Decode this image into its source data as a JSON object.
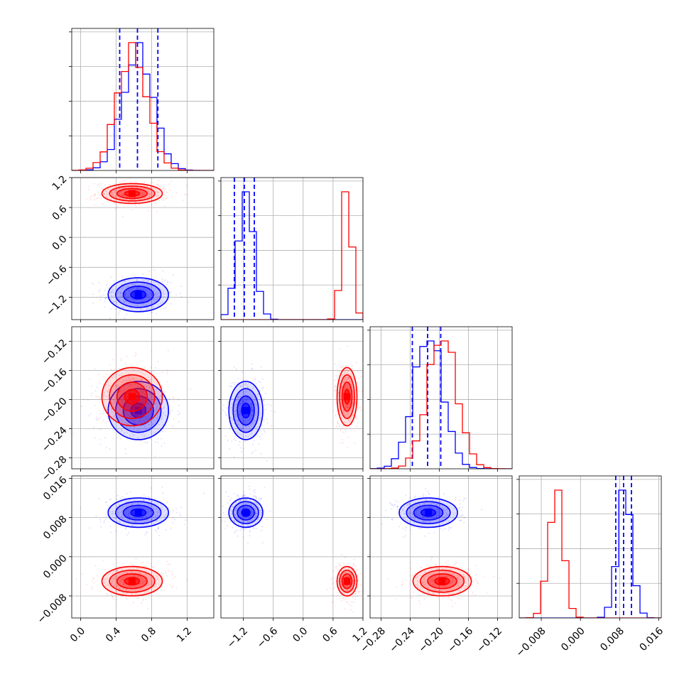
{
  "colors": {
    "blue": "#0000ff",
    "red": "#ff0000",
    "grid": "#b0b0b0"
  },
  "chart_data": {
    "type": "corner",
    "series": [
      {
        "name": "",
        "color": "blue",
        "means": [
          0.65,
          -1.15,
          -0.215,
          0.009
        ],
        "sds": [
          0.17,
          0.17,
          0.02,
          0.0015
        ],
        "quantiles": [
          [
            0.44,
            0.64,
            0.87
          ],
          [
            -1.38,
            -1.18,
            -0.98
          ],
          [
            -0.237,
            -0.216,
            -0.198
          ],
          [
            0.0072,
            0.0088,
            0.0104
          ]
        ]
      },
      {
        "name": "",
        "color": "red",
        "means": [
          0.58,
          0.88,
          -0.196,
          -0.005
        ],
        "sds": [
          0.17,
          0.1,
          0.02,
          0.0015
        ],
        "quantiles": null
      }
    ],
    "axes": [
      {
        "range": [
          -0.1,
          1.5
        ],
        "ticks": [
          0.0,
          0.4,
          0.8,
          1.2
        ],
        "tick_labels": [
          "0.0",
          "0.4",
          "0.8",
          "1.2"
        ]
      },
      {
        "range": [
          -1.65,
          1.2
        ],
        "ticks": [
          -1.2,
          -0.6,
          0.0,
          0.6,
          1.2
        ],
        "tick_labels": [
          "−1.2",
          "−0.6",
          "0.0",
          "0.6",
          "1.2"
        ]
      },
      {
        "range": [
          -0.295,
          -0.1
        ],
        "ticks": [
          -0.28,
          -0.24,
          -0.2,
          -0.16,
          -0.12
        ],
        "tick_labels": [
          "−0.28",
          "−0.24",
          "−0.20",
          "−0.16",
          "−0.12"
        ]
      },
      {
        "range": [
          -0.0125,
          0.0165
        ],
        "ticks": [
          -0.008,
          0.0,
          0.008,
          0.016
        ],
        "tick_labels": [
          "−0.008",
          "0.000",
          "0.008",
          "0.016"
        ]
      }
    ],
    "diag_y_ticks": 4,
    "grid": true,
    "legend": "none",
    "title": "",
    "xlabel": "",
    "ylabel": ""
  }
}
